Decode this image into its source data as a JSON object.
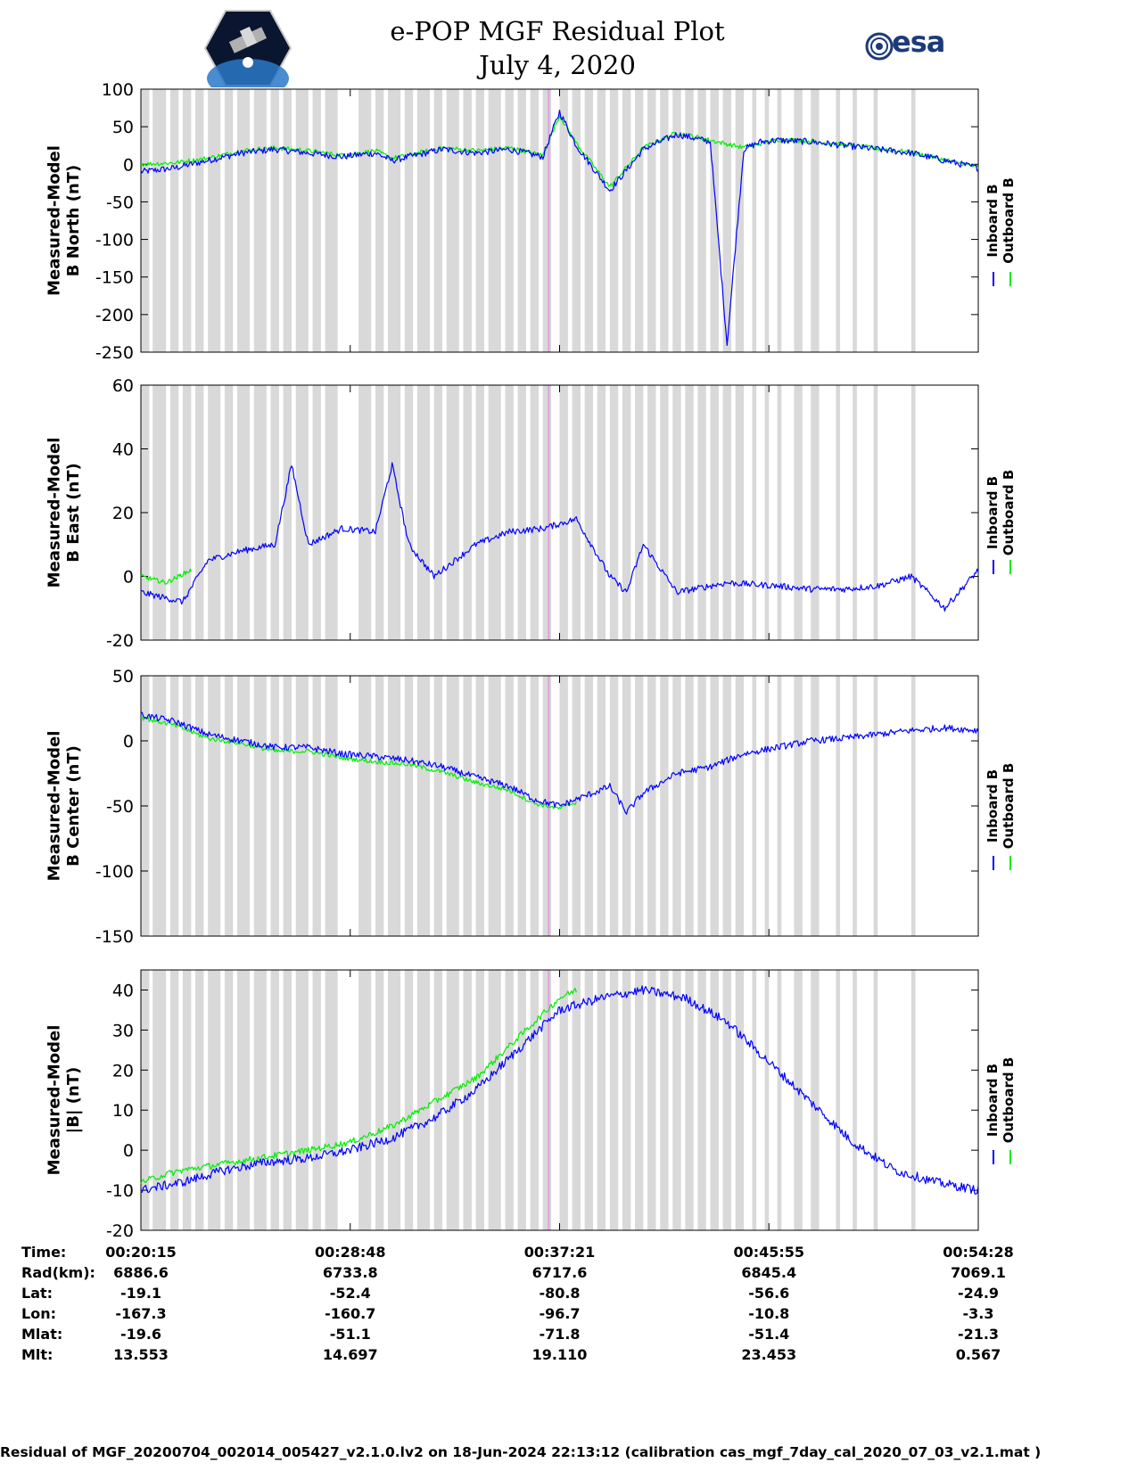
{
  "header": {
    "title_line1": "e-POP MGF Residual Plot",
    "title_line2": "July 4, 2020",
    "logo_left": "CASSIOPE",
    "logo_right": "esa"
  },
  "legend": {
    "inboard_label": "Inboard B",
    "outboard_label": "Outboard B",
    "inboard_color": "#0000ff",
    "outboard_color": "#00ee00"
  },
  "chart_data": [
    {
      "type": "line",
      "ylabel_line1": "Measured-Model",
      "ylabel_line2": "B North (nT)",
      "ylim": [
        -250,
        100
      ],
      "yticks": [
        100,
        50,
        0,
        -50,
        -100,
        -150,
        -200,
        -250
      ],
      "series": [
        {
          "name": "Inboard B",
          "x": [
            0,
            0.04,
            0.08,
            0.12,
            0.16,
            0.2,
            0.24,
            0.28,
            0.3,
            0.32,
            0.36,
            0.4,
            0.44,
            0.48,
            0.5,
            0.52,
            0.56,
            0.6,
            0.64,
            0.68,
            0.7,
            0.72,
            0.74,
            0.76,
            0.8,
            0.84,
            0.88,
            0.92,
            0.96,
            1.0
          ],
          "y": [
            -10,
            -5,
            5,
            15,
            20,
            15,
            10,
            15,
            5,
            10,
            20,
            15,
            20,
            10,
            70,
            25,
            -35,
            20,
            40,
            30,
            -240,
            20,
            30,
            32,
            30,
            25,
            20,
            15,
            5,
            -5
          ]
        },
        {
          "name": "Outboard B",
          "x": [
            0,
            0.04,
            0.08,
            0.12,
            0.16,
            0.2,
            0.24,
            0.28,
            0.3,
            0.32,
            0.36,
            0.4,
            0.44,
            0.48,
            0.5,
            0.52,
            0.56,
            0.6,
            0.64,
            0.68,
            0.72,
            0.76,
            0.8,
            0.84,
            0.88,
            0.92,
            0.96,
            1.0
          ],
          "y": [
            0,
            2,
            8,
            18,
            22,
            18,
            12,
            18,
            8,
            12,
            22,
            18,
            22,
            12,
            65,
            28,
            -30,
            22,
            42,
            32,
            22,
            33,
            31,
            26,
            21,
            16,
            6,
            -4
          ]
        }
      ]
    },
    {
      "type": "line",
      "ylabel_line1": "Measured-Model",
      "ylabel_line2": "B East (nT)",
      "ylim": [
        -20,
        60
      ],
      "yticks": [
        60,
        40,
        20,
        0,
        -20
      ],
      "series": [
        {
          "name": "Inboard B",
          "x": [
            0,
            0.05,
            0.08,
            0.12,
            0.16,
            0.18,
            0.2,
            0.24,
            0.28,
            0.3,
            0.32,
            0.35,
            0.4,
            0.44,
            0.48,
            0.52,
            0.56,
            0.58,
            0.6,
            0.64,
            0.7,
            0.76,
            0.8,
            0.84,
            0.88,
            0.92,
            0.96,
            1.0
          ],
          "y": [
            -5,
            -8,
            5,
            8,
            10,
            35,
            10,
            15,
            14,
            35,
            10,
            0,
            10,
            14,
            15,
            18,
            0,
            -5,
            10,
            -5,
            -2,
            -3,
            -4,
            -4,
            -3,
            0,
            -10,
            2
          ]
        },
        {
          "name": "Outboard B",
          "x": [
            0,
            0.03,
            0.06
          ],
          "y": [
            0,
            -2,
            2
          ]
        }
      ]
    },
    {
      "type": "line",
      "ylabel_line1": "Measured-Model",
      "ylabel_line2": "B Center (nT)",
      "ylim": [
        -150,
        50
      ],
      "yticks": [
        50,
        0,
        -50,
        -100,
        -150
      ],
      "series": [
        {
          "name": "Inboard B",
          "x": [
            0,
            0.04,
            0.08,
            0.12,
            0.16,
            0.2,
            0.24,
            0.28,
            0.32,
            0.36,
            0.4,
            0.44,
            0.47,
            0.5,
            0.52,
            0.56,
            0.58,
            0.6,
            0.64,
            0.68,
            0.72,
            0.76,
            0.8,
            0.84,
            0.88,
            0.92,
            0.96,
            1.0
          ],
          "y": [
            20,
            15,
            5,
            0,
            -5,
            -5,
            -10,
            -12,
            -15,
            -20,
            -28,
            -35,
            -45,
            -50,
            -45,
            -35,
            -55,
            -40,
            -25,
            -20,
            -10,
            -5,
            0,
            2,
            5,
            8,
            10,
            8
          ]
        },
        {
          "name": "Outboard B",
          "x": [
            0,
            0.04,
            0.08,
            0.12,
            0.16,
            0.2,
            0.24,
            0.28,
            0.32,
            0.36,
            0.4,
            0.44,
            0.47,
            0.5,
            0.52
          ],
          "y": [
            18,
            12,
            2,
            -2,
            -8,
            -8,
            -13,
            -16,
            -18,
            -24,
            -32,
            -38,
            -48,
            -52,
            -47
          ]
        }
      ]
    },
    {
      "type": "line",
      "ylabel_line1": "Measured-Model",
      "ylabel_line2": "|B| (nT)",
      "ylim": [
        -20,
        45
      ],
      "yticks": [
        40,
        30,
        20,
        10,
        0,
        -10,
        -20
      ],
      "series": [
        {
          "name": "Inboard B",
          "x": [
            0,
            0.05,
            0.1,
            0.15,
            0.2,
            0.25,
            0.3,
            0.35,
            0.4,
            0.45,
            0.5,
            0.55,
            0.6,
            0.65,
            0.7,
            0.75,
            0.8,
            0.85,
            0.9,
            0.95,
            1.0
          ],
          "y": [
            -10,
            -8,
            -5,
            -3,
            -2,
            0,
            3,
            8,
            15,
            25,
            35,
            38,
            40,
            38,
            32,
            22,
            12,
            2,
            -5,
            -8,
            -10
          ]
        },
        {
          "name": "Outboard B",
          "x": [
            0,
            0.03,
            0.05,
            0.2,
            0.25,
            0.3,
            0.35,
            0.4,
            0.45,
            0.5,
            0.52
          ],
          "y": [
            -8,
            -6,
            -5,
            0,
            2,
            6,
            12,
            18,
            28,
            38,
            40
          ]
        }
      ]
    }
  ],
  "xaxis": {
    "rows": [
      {
        "label": "Time:",
        "values": [
          "00:20:15",
          "00:28:48",
          "00:37:21",
          "00:45:55",
          "00:54:28"
        ]
      },
      {
        "label": "Rad(km):",
        "values": [
          "6886.6",
          "6733.8",
          "6717.6",
          "6845.4",
          "7069.1"
        ]
      },
      {
        "label": "Lat:",
        "values": [
          "-19.1",
          "-52.4",
          "-80.8",
          "-56.6",
          "-24.9"
        ]
      },
      {
        "label": "Lon:",
        "values": [
          "-167.3",
          "-160.7",
          "-96.7",
          "-10.8",
          "-3.3"
        ]
      },
      {
        "label": "Mlat:",
        "values": [
          "-19.6",
          "-51.1",
          "-71.8",
          "-51.4",
          "-21.3"
        ]
      },
      {
        "label": "Mlt:",
        "values": [
          "13.553",
          "14.697",
          "19.110",
          "23.453",
          "0.567"
        ]
      }
    ]
  },
  "footer": {
    "text": "Residual of MGF_20200704_002014_005427_v2.1.0.lv2 on 18-Jun-2024 22:13:12 (calibration cas_mgf_7day_cal_2020_07_03_v2.1.mat )"
  }
}
